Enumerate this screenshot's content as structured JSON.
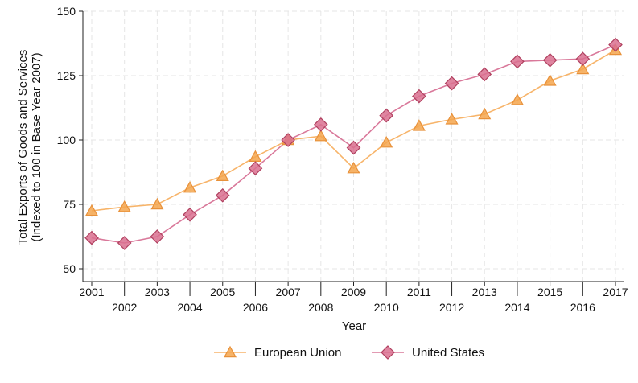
{
  "chart_data": {
    "type": "line",
    "title": "",
    "xlabel": "Year",
    "ylabel_line1": "Total Exports of Goods and Services",
    "ylabel_line2": "(Indexed to 100 in Base Year 2007)",
    "x": [
      2001,
      2002,
      2003,
      2004,
      2005,
      2006,
      2007,
      2008,
      2009,
      2010,
      2011,
      2012,
      2013,
      2014,
      2015,
      2016,
      2017
    ],
    "x_tick_labels": [
      "2001",
      "2002",
      "2003",
      "2004",
      "2005",
      "2006",
      "2007",
      "2008",
      "2009",
      "2010",
      "2011",
      "2012",
      "2013",
      "2014",
      "2015",
      "2016",
      "2017"
    ],
    "xlim": [
      2001,
      2017
    ],
    "ylim": [
      45,
      150
    ],
    "y_ticks": [
      50,
      75,
      100,
      125,
      150
    ],
    "y_tick_labels": [
      "50",
      "75",
      "100",
      "125",
      "150"
    ],
    "grid": true,
    "legend_position": "bottom",
    "series": [
      {
        "name": "European Union",
        "marker": "triangle",
        "line_color": "#f7b46a",
        "marker_fill": "#f5a64e",
        "marker_stroke": "#e8913a",
        "values": [
          72.5,
          74,
          75,
          81.5,
          86,
          93.5,
          100,
          101.5,
          89,
          99,
          105.5,
          108,
          110,
          115.5,
          123,
          127.5,
          135
        ]
      },
      {
        "name": "United States",
        "marker": "diamond",
        "line_color": "#d9789a",
        "marker_fill": "#d9708f",
        "marker_stroke": "#b0405f",
        "values": [
          62,
          60,
          62.5,
          71,
          78.5,
          89,
          100,
          106,
          97,
          109.5,
          117,
          122,
          125.5,
          130.5,
          131,
          131.5,
          137
        ]
      }
    ]
  }
}
